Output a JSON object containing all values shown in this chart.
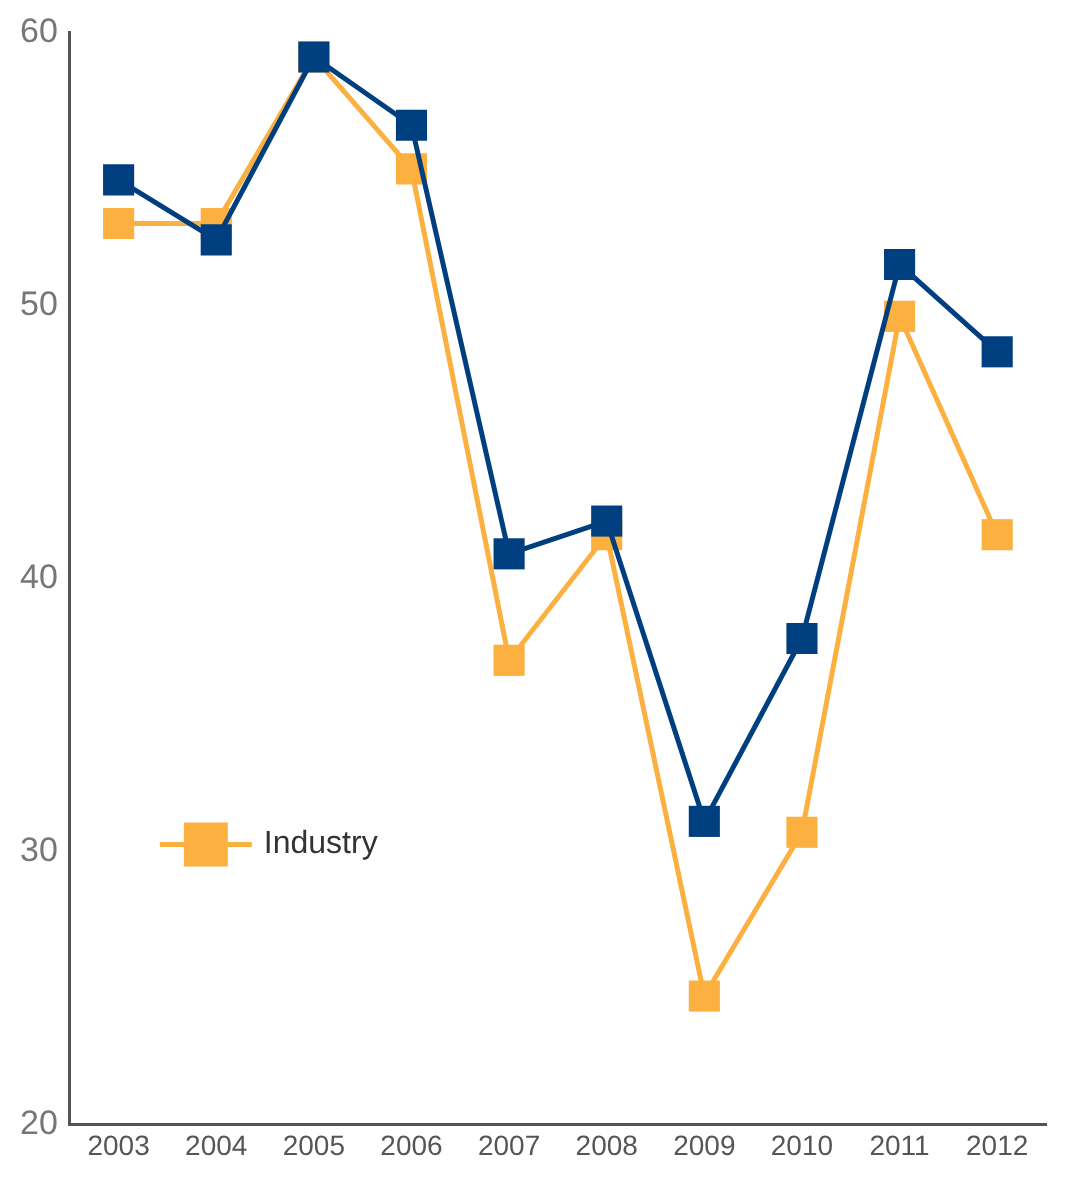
{
  "chart_data": {
    "type": "line",
    "categories": [
      "2003",
      "2004",
      "2005",
      "2006",
      "2007",
      "2008",
      "2009",
      "2010",
      "2011",
      "2012"
    ],
    "series": [
      {
        "name": "Industry",
        "color": "#fbb040",
        "values": [
          53.0,
          53.0,
          59.1,
          55.0,
          37.0,
          41.6,
          24.7,
          30.7,
          49.6,
          41.6
        ]
      },
      {
        "color": "#003f7f",
        "values": [
          54.6,
          52.4,
          59.1,
          56.6,
          40.9,
          42.1,
          31.1,
          37.8,
          51.5,
          48.3
        ]
      }
    ],
    "ylim": [
      20,
      60
    ],
    "yticks": [
      20,
      30,
      40,
      50,
      60
    ],
    "grid": false,
    "legend": "bottom left",
    "marker": "square",
    "line_style": "solid"
  }
}
